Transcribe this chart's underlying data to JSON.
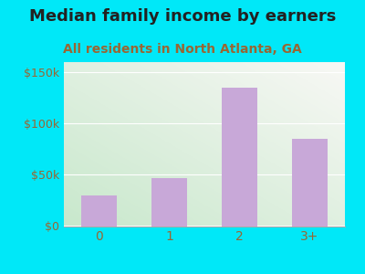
{
  "title": "Median family income by earners",
  "subtitle": "All residents in North Atlanta, GA",
  "categories": [
    "0",
    "1",
    "2",
    "3+"
  ],
  "values": [
    30000,
    47000,
    135000,
    85000
  ],
  "bar_color": "#c8a8d8",
  "background_outer": "#00e8f8",
  "title_color": "#222222",
  "subtitle_color": "#996633",
  "tick_label_color": "#996633",
  "ylim": [
    0,
    160000
  ],
  "yticks": [
    0,
    50000,
    100000,
    150000
  ],
  "ytick_labels": [
    "$0",
    "$50k",
    "$100k",
    "$150k"
  ],
  "title_fontsize": 13,
  "subtitle_fontsize": 10,
  "gradient_bottom_left": "#c8e8cc",
  "gradient_top_right": "#f8f8f5"
}
